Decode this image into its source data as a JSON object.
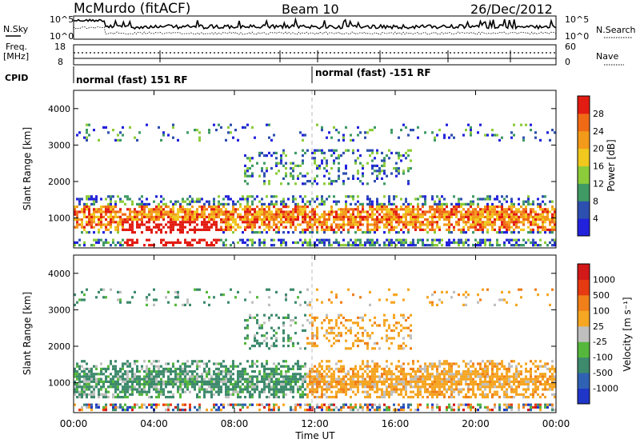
{
  "header": {
    "station": "McMurdo (fitACF)",
    "beam": "Beam 10",
    "date": "26/Dec/2012"
  },
  "top_panel": {
    "left_label": "N.Sky",
    "right_label": "N.Search",
    "ticks_left": [
      "10^5",
      "10^0"
    ],
    "ticks_right": [
      "10^5",
      "10^0"
    ]
  },
  "freq_panel": {
    "left_label_1": "Freq.",
    "left_label_2": "[MHz]",
    "ticks_left": [
      "18",
      "8"
    ],
    "right_label": "Nave",
    "ticks_right": [
      "60",
      "0"
    ]
  },
  "cpid": {
    "label": "CPID",
    "segments": [
      "normal (fast) 151 RF",
      "normal (fast) -151 RF"
    ]
  },
  "chart_data": [
    {
      "type": "heatmap",
      "title": "",
      "ylabel": "Slant Range [km]",
      "xlabel": "",
      "y_ticks": [
        "1000",
        "2000",
        "3000",
        "4000"
      ],
      "ylim": [
        180,
        4500
      ],
      "colorbar_label": "Power [dB]",
      "colorbar_ticks": [
        "4",
        "8",
        "12",
        "16",
        "20",
        "24",
        "28"
      ],
      "colorbar_colors": [
        "#2222dd",
        "#2d4fb0",
        "#3f9a64",
        "#8ccc3a",
        "#f0c81e",
        "#f39a1a",
        "#f06a16",
        "#e21c12"
      ]
    },
    {
      "type": "heatmap",
      "title": "",
      "ylabel": "Slant Range [km]",
      "xlabel": "Time UT",
      "x_ticks": [
        "00:00",
        "04:00",
        "08:00",
        "12:00",
        "16:00",
        "20:00",
        "00:00"
      ],
      "y_ticks": [
        "1000",
        "2000",
        "3000",
        "4000"
      ],
      "ylim": [
        180,
        4500
      ],
      "colorbar_label": "Velocity [m s⁻¹]",
      "colorbar_ticks": [
        "1000",
        "500",
        "100",
        "25",
        "-25",
        "-100",
        "-500",
        "-1000"
      ],
      "colorbar_colors": [
        "#2036c8",
        "#2f62b3",
        "#3d8a6c",
        "#55b83c",
        "#bfbfbf",
        "#f5a623",
        "#f07f1a",
        "#e63a12",
        "#d21818"
      ]
    }
  ]
}
